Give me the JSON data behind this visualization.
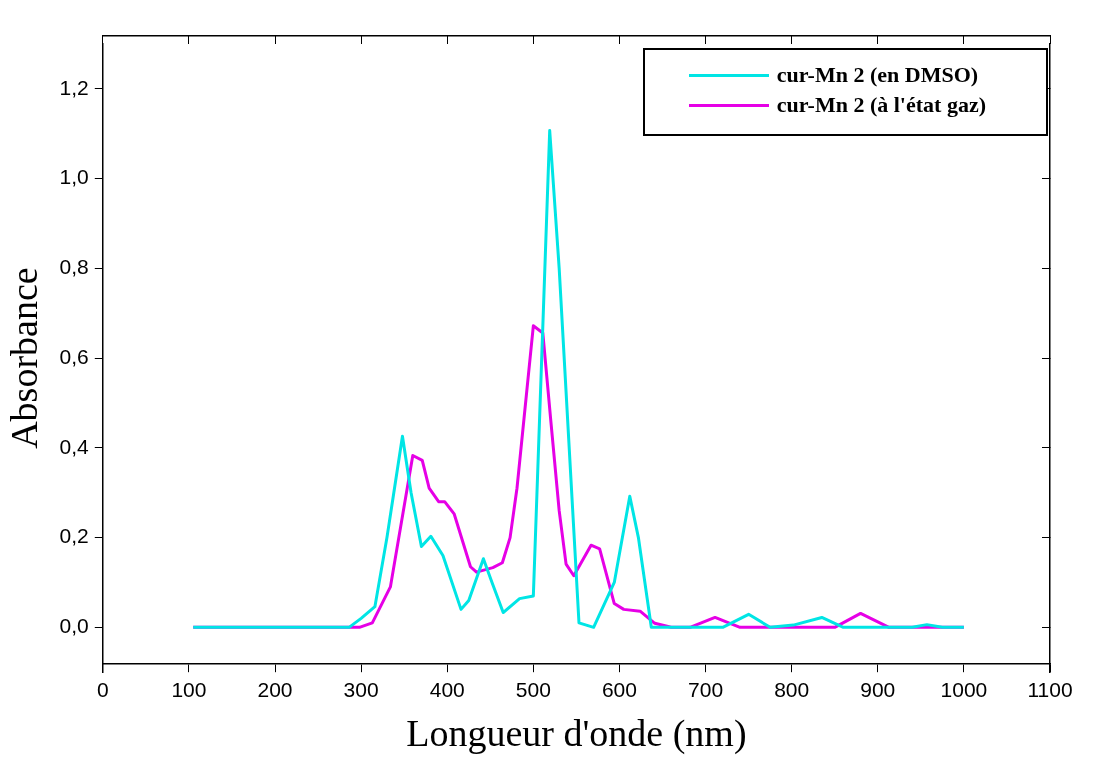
{
  "chart_data": {
    "type": "line",
    "xlabel": "Longueur d'onde (nm)",
    "ylabel": "Absorbance",
    "xlim": [
      0,
      1100
    ],
    "xticks": [
      0,
      100,
      200,
      300,
      400,
      500,
      600,
      700,
      800,
      900,
      1000,
      1100
    ],
    "ylim": [
      -0.1,
      1.3
    ],
    "yticks": [
      {
        "value": 0,
        "label": "0,0"
      },
      {
        "value": 0.2,
        "label": "0,2"
      },
      {
        "value": 0.4,
        "label": "0,4"
      },
      {
        "value": 0.6,
        "label": "0,6"
      },
      {
        "value": 0.8,
        "label": "0,8"
      },
      {
        "value": 1.0,
        "label": "1,0"
      },
      {
        "value": 1.2,
        "label": "1,2"
      }
    ],
    "grid": false,
    "legend": "top right",
    "marker": "none",
    "line_style": "solid",
    "series": [
      {
        "name": "cur-Mn 2 (en DMSO)",
        "color": "#00e5e5",
        "x": [
          105,
          286,
          300,
          316,
          330,
          348,
          358,
          370,
          381,
          395,
          416,
          425,
          442,
          452,
          465,
          484,
          500,
          519,
          530,
          553,
          570,
          594,
          612,
          622,
          637,
          720,
          750,
          775,
          802,
          835,
          860,
          940,
          957,
          975,
          1000
        ],
        "values": [
          0,
          0,
          0.02,
          0.046,
          0.2,
          0.426,
          0.3,
          0.18,
          0.203,
          0.16,
          0.04,
          0.06,
          0.153,
          0.1,
          0.033,
          0.064,
          0.07,
          1.107,
          0.8,
          0.01,
          0,
          0.1,
          0.292,
          0.2,
          0,
          0,
          0.029,
          0,
          0.005,
          0.022,
          0,
          0,
          0.006,
          0,
          0
        ]
      },
      {
        "name": "cur-Mn 2 (à l'état gaz)",
        "color": "#e600e6",
        "x": [
          105,
          298,
          313,
          334,
          360,
          371,
          379,
          390,
          397,
          408,
          427,
          434,
          453,
          464,
          473,
          481,
          500,
          511,
          520,
          530,
          538,
          547,
          567,
          577,
          594,
          605,
          624,
          641,
          660,
          682,
          711,
          740,
          850,
          880,
          913,
          1000
        ],
        "values": [
          0,
          0,
          0.01,
          0.09,
          0.383,
          0.372,
          0.31,
          0.28,
          0.28,
          0.253,
          0.135,
          0.123,
          0.133,
          0.144,
          0.2,
          0.31,
          0.672,
          0.656,
          0.466,
          0.26,
          0.141,
          0.115,
          0.183,
          0.175,
          0.053,
          0.04,
          0.036,
          0.009,
          0,
          0,
          0.022,
          0,
          0,
          0.031,
          0,
          0
        ]
      }
    ]
  }
}
